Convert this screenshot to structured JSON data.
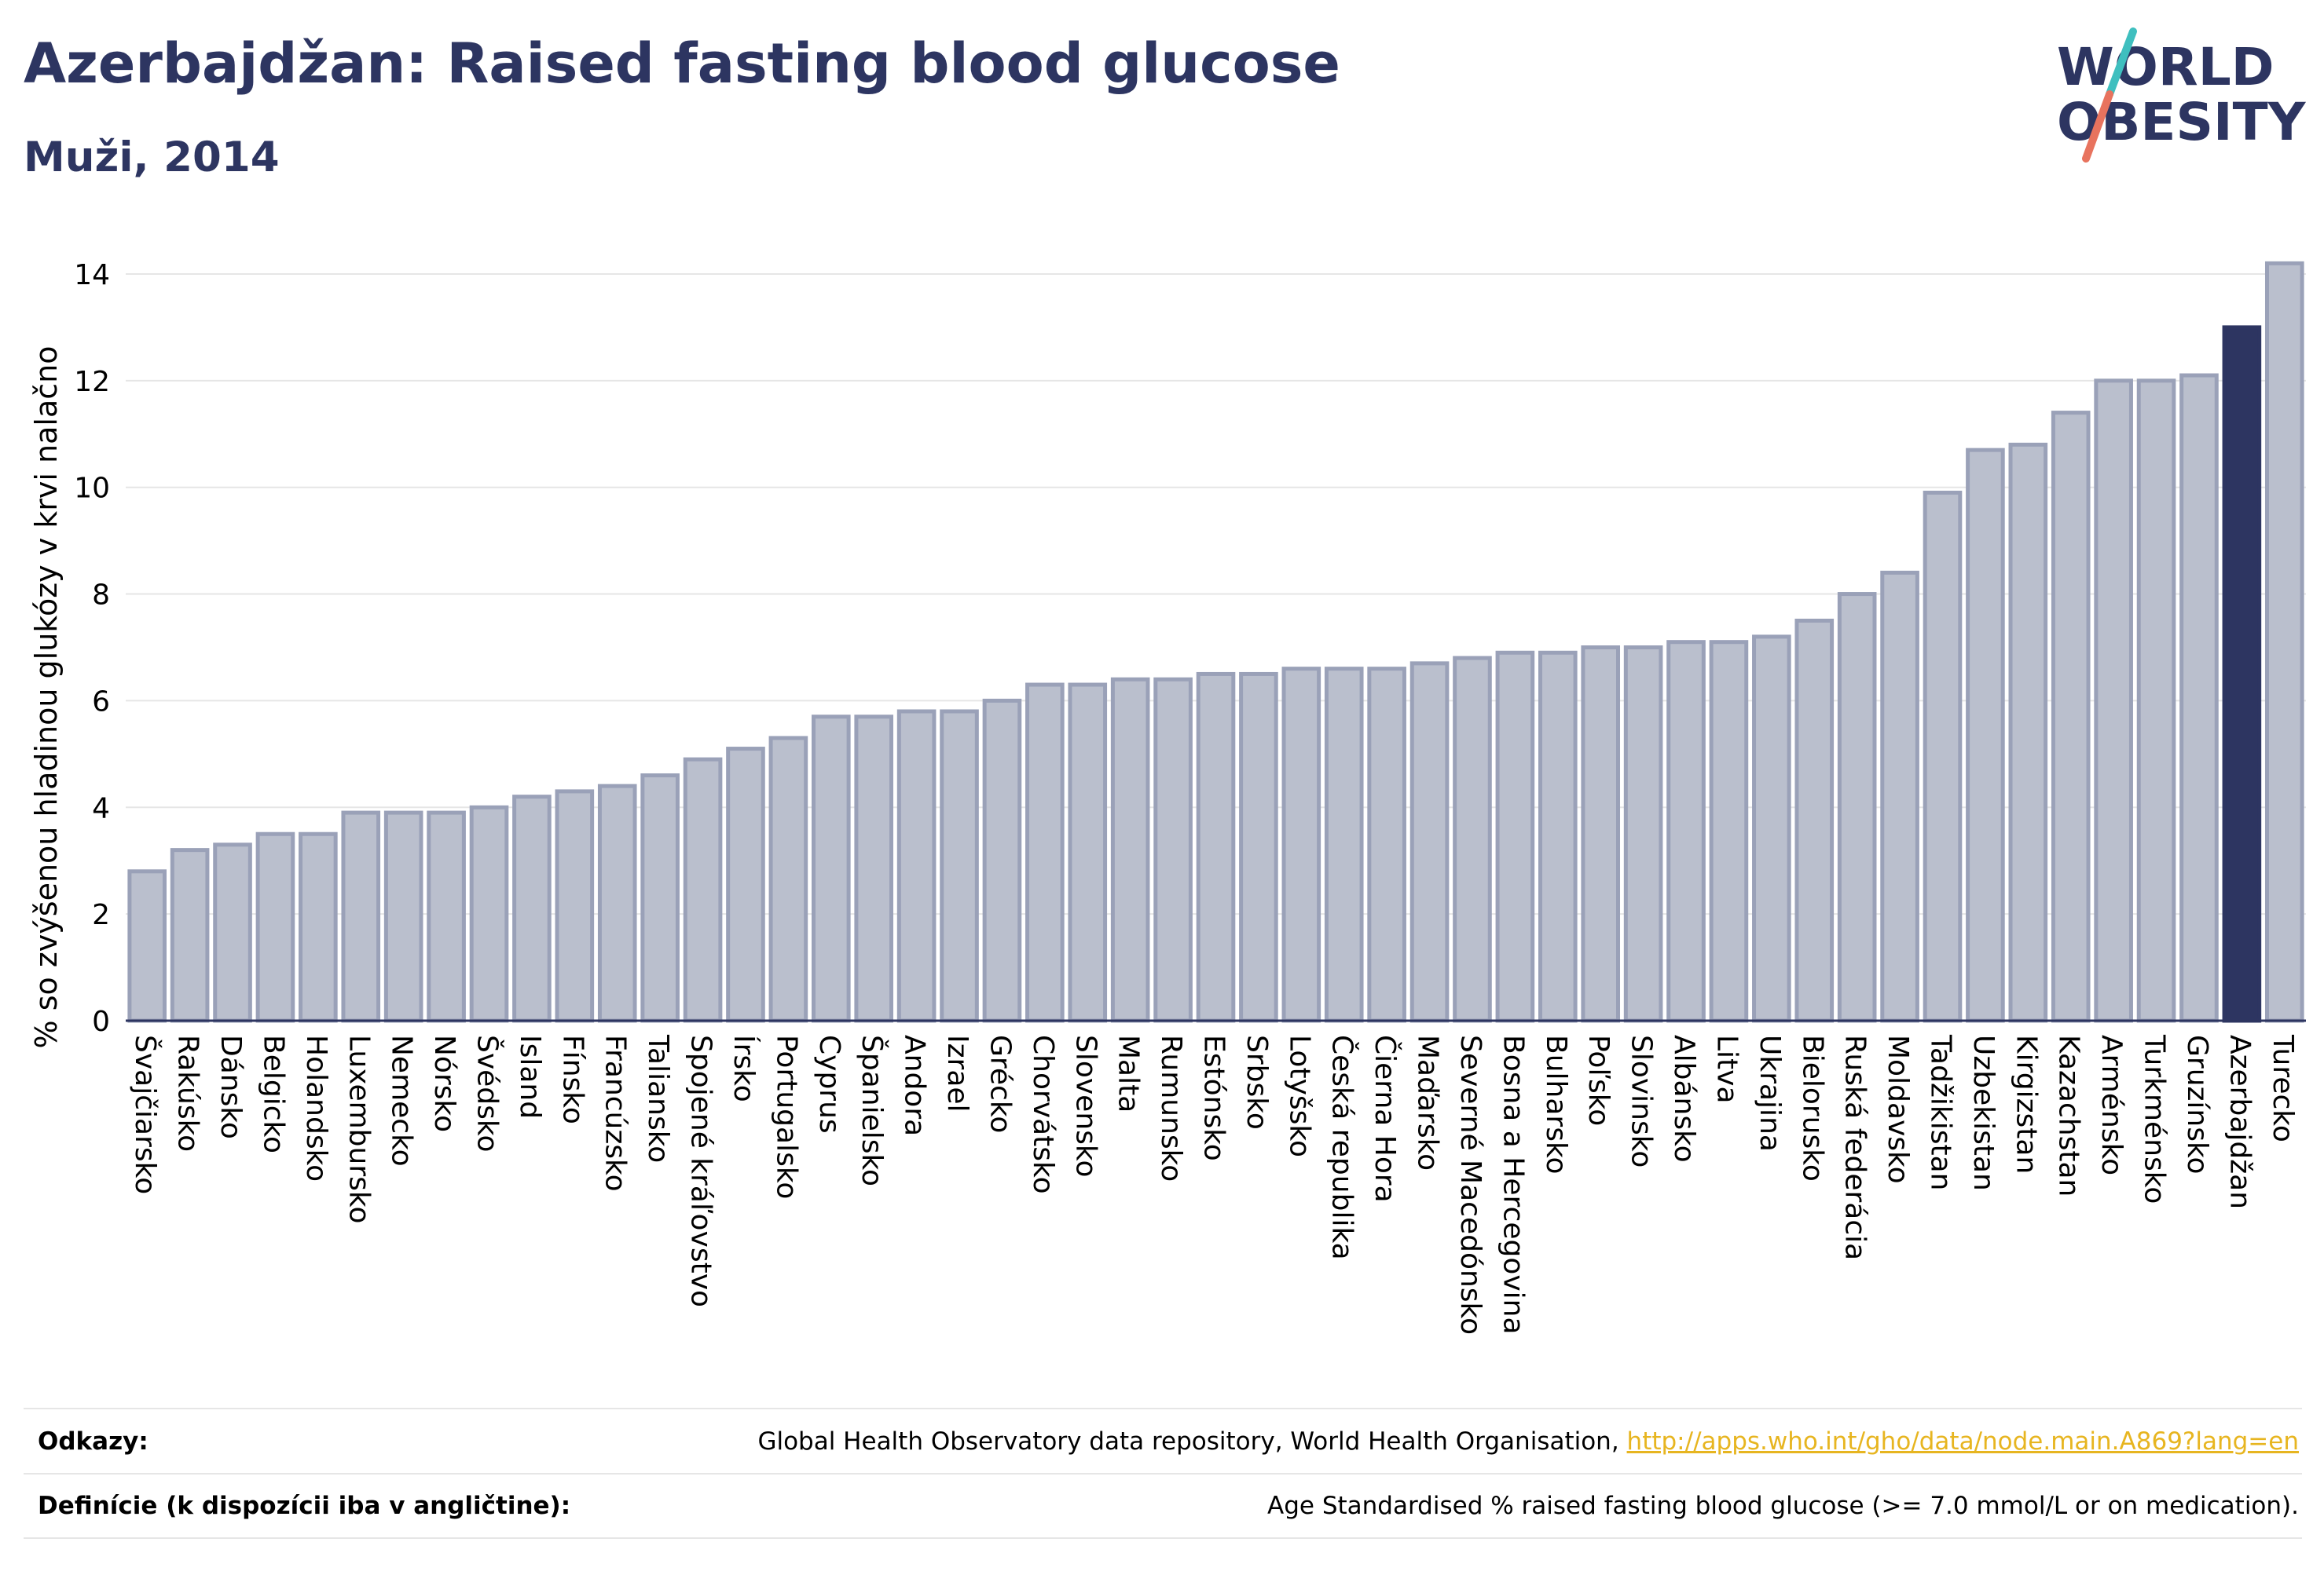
{
  "header": {
    "title": "Azerbajdžan: Raised fasting blood glucose",
    "subtitle": "Muži, 2014"
  },
  "logo": {
    "line1": "WORLD",
    "line2": "OBESITY",
    "colors": {
      "text": "#2d3561",
      "slash_teal": "#3fbfbf",
      "slash_coral": "#e8735e"
    }
  },
  "colors": {
    "bar_fill": "#babfcd",
    "bar_stroke": "#9aa1b8",
    "highlight": "#2d3561",
    "grid": "#e6e6e6",
    "axis": "#2d3561"
  },
  "chart_data": {
    "type": "bar",
    "ylabel": "% so zvýšenou hladinou glukózy v krvi nalačno",
    "ylim": [
      0,
      14.5
    ],
    "yticks": [
      0,
      2,
      4,
      6,
      8,
      10,
      12,
      14
    ],
    "grid": true,
    "highlight": "Azerbajdžan",
    "categories": [
      "Švajčiarsko",
      "Rakúsko",
      "Dánsko",
      "Belgicko",
      "Holandsko",
      "Luxembursko",
      "Nemecko",
      "Nórsko",
      "Švédsko",
      "Island",
      "Fínsko",
      "Francúzsko",
      "Taliansko",
      "Spojené kráľovstvo",
      "Írsko",
      "Portugalsko",
      "Cyprus",
      "Španielsko",
      "Andora",
      "Izrael",
      "Grécko",
      "Chorvátsko",
      "Slovensko",
      "Malta",
      "Rumunsko",
      "Estónsko",
      "Srbsko",
      "Lotyšsko",
      "Česká republika",
      "Čierna Hora",
      "Maďarsko",
      "Severné Macedónsko",
      "Bosna a Hercegovina",
      "Bulharsko",
      "Poľsko",
      "Slovinsko",
      "Albánsko",
      "Litva",
      "Ukrajina",
      "Bielorusko",
      "Ruská federácia",
      "Moldavsko",
      "Tadžikistan",
      "Uzbekistan",
      "Kirgizstan",
      "Kazachstan",
      "Arménsko",
      "Turkménsko",
      "Gruzínsko",
      "Azerbajdžan",
      "Turecko"
    ],
    "values": [
      2.8,
      3.2,
      3.3,
      3.5,
      3.5,
      3.9,
      3.9,
      3.9,
      4.0,
      4.2,
      4.3,
      4.4,
      4.6,
      4.9,
      5.1,
      5.3,
      5.7,
      5.7,
      5.8,
      5.8,
      6.0,
      6.3,
      6.3,
      6.4,
      6.4,
      6.5,
      6.5,
      6.6,
      6.6,
      6.6,
      6.7,
      6.8,
      6.9,
      6.9,
      7.0,
      7.0,
      7.1,
      7.1,
      7.2,
      7.5,
      8.0,
      8.4,
      9.9,
      10.7,
      10.8,
      11.4,
      12.0,
      12.0,
      12.1,
      13.0,
      14.2
    ]
  },
  "footer": {
    "references_label": "Odkazy:",
    "references_text": "Global Health Observatory data repository, World Health Organisation, ",
    "references_link": "http://apps.who.int/gho/data/node.main.A869?lang=en",
    "definitions_label": "Definície (k dispozícii iba v angličtine):",
    "definitions_text": "Age Standardised % raised fasting blood glucose (>= 7.0 mmol/L or on medication)."
  }
}
